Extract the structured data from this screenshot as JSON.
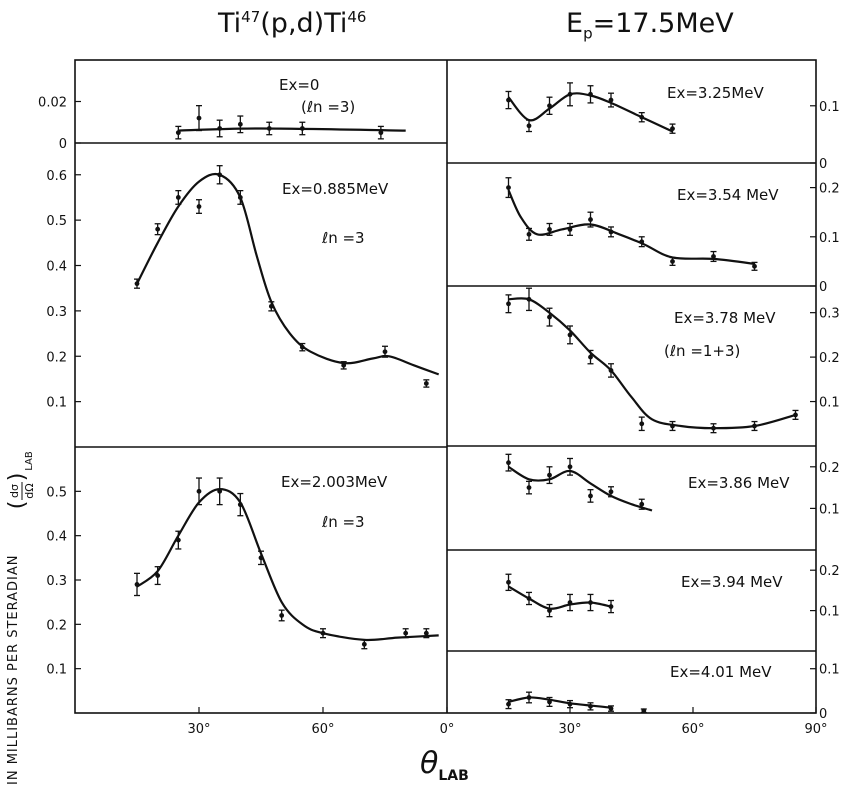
{
  "header": {
    "reaction": {
      "a": "Ti",
      "a_mass": "47",
      "mid": "(p,d)",
      "b": "Ti",
      "b_mass": "46"
    },
    "energy": {
      "sym": "E",
      "sub": "p",
      "rest": "=17.5MeV"
    }
  },
  "ylabel": {
    "main": "IN MILLIBARNS PER STERADIAN",
    "frac_num": "dσ",
    "frac_den": "dΩ",
    "sub": "LAB"
  },
  "xlabel": {
    "sym": "θ",
    "sub": "LAB"
  },
  "chart_data": [
    {
      "type": "scatter",
      "column": "left",
      "state": "Ex=0",
      "note": "(ℓn =3)",
      "ylim": [
        0,
        0.04
      ],
      "y_ticks": [
        "0.02",
        "0"
      ],
      "y_tick_values": [
        0.02,
        0
      ],
      "x": [
        25,
        30,
        35,
        40,
        47,
        55,
        74
      ],
      "y": [
        0.005,
        0.012,
        0.007,
        0.009,
        0.007,
        0.007,
        0.005
      ],
      "err": [
        0.003,
        0.006,
        0.004,
        0.004,
        0.003,
        0.003,
        0.003
      ],
      "curve": [
        [
          25,
          0.006
        ],
        [
          45,
          0.007
        ],
        [
          80,
          0.006
        ]
      ]
    },
    {
      "type": "scatter",
      "column": "left",
      "state": "Ex=0.885MeV",
      "note": "ℓn =3",
      "ylim": [
        0,
        0.67
      ],
      "y_ticks": [
        "0.6",
        "0.5",
        "0.4",
        "0.3",
        "0.2",
        "0.1"
      ],
      "y_tick_values": [
        0.6,
        0.5,
        0.4,
        0.3,
        0.2,
        0.1
      ],
      "x": [
        15,
        20,
        25,
        30,
        35,
        40,
        47.5,
        55,
        65,
        75,
        85
      ],
      "y": [
        0.36,
        0.48,
        0.55,
        0.53,
        0.6,
        0.55,
        0.31,
        0.22,
        0.18,
        0.21,
        0.14
      ],
      "err": [
        0.01,
        0.012,
        0.015,
        0.015,
        0.02,
        0.015,
        0.01,
        0.008,
        0.008,
        0.012,
        0.008
      ],
      "curve": [
        [
          15,
          0.36
        ],
        [
          20,
          0.45
        ],
        [
          25,
          0.53
        ],
        [
          30,
          0.585
        ],
        [
          35,
          0.6
        ],
        [
          40,
          0.55
        ],
        [
          44,
          0.42
        ],
        [
          47.5,
          0.32
        ],
        [
          52,
          0.25
        ],
        [
          57,
          0.21
        ],
        [
          65,
          0.185
        ],
        [
          72,
          0.195
        ],
        [
          76,
          0.2
        ],
        [
          82,
          0.18
        ],
        [
          88,
          0.16
        ]
      ]
    },
    {
      "type": "scatter",
      "column": "left",
      "state": "Ex=2.003MeV",
      "note": "ℓn =3",
      "ylim": [
        0,
        0.6
      ],
      "y_ticks": [
        "0.5",
        "0.4",
        "0.3",
        "0.2",
        "0.1"
      ],
      "y_tick_values": [
        0.5,
        0.4,
        0.3,
        0.2,
        0.1
      ],
      "x": [
        15,
        20,
        25,
        30,
        35,
        40,
        45,
        50,
        60,
        70,
        80,
        85
      ],
      "y": [
        0.29,
        0.31,
        0.39,
        0.5,
        0.5,
        0.47,
        0.35,
        0.22,
        0.18,
        0.155,
        0.18,
        0.18
      ],
      "err": [
        0.025,
        0.02,
        0.02,
        0.03,
        0.03,
        0.025,
        0.015,
        0.012,
        0.01,
        0.01,
        0.01,
        0.01
      ],
      "curve": [
        [
          15,
          0.285
        ],
        [
          20,
          0.32
        ],
        [
          25,
          0.4
        ],
        [
          30,
          0.475
        ],
        [
          35,
          0.505
        ],
        [
          40,
          0.475
        ],
        [
          45,
          0.36
        ],
        [
          50,
          0.25
        ],
        [
          55,
          0.2
        ],
        [
          60,
          0.18
        ],
        [
          70,
          0.165
        ],
        [
          78,
          0.17
        ],
        [
          88,
          0.175
        ]
      ]
    },
    {
      "type": "scatter",
      "column": "right",
      "state": "Ex=3.25MeV",
      "note": "",
      "ylim": [
        0,
        0.18
      ],
      "y_ticks": [
        "0.1",
        "0"
      ],
      "y_tick_values": [
        0.1,
        0
      ],
      "x": [
        15,
        20,
        25,
        30,
        35,
        40,
        47.5,
        55
      ],
      "y": [
        0.11,
        0.065,
        0.1,
        0.12,
        0.12,
        0.11,
        0.08,
        0.06
      ],
      "err": [
        0.015,
        0.01,
        0.015,
        0.02,
        0.015,
        0.012,
        0.008,
        0.008
      ],
      "curve": [
        [
          15,
          0.115
        ],
        [
          20,
          0.075
        ],
        [
          25,
          0.095
        ],
        [
          30,
          0.12
        ],
        [
          35,
          0.118
        ],
        [
          40,
          0.105
        ],
        [
          47.5,
          0.08
        ],
        [
          55,
          0.055
        ]
      ]
    },
    {
      "type": "scatter",
      "column": "right",
      "state": "Ex=3.54 MeV",
      "note": "",
      "ylim": [
        0,
        0.25
      ],
      "y_ticks": [
        "0.2",
        "0.1",
        "0"
      ],
      "y_tick_values": [
        0.2,
        0.1,
        0
      ],
      "x": [
        15,
        20,
        25,
        30,
        35,
        40,
        47.5,
        55,
        65,
        75
      ],
      "y": [
        0.2,
        0.105,
        0.115,
        0.115,
        0.135,
        0.11,
        0.09,
        0.05,
        0.06,
        0.04
      ],
      "err": [
        0.02,
        0.012,
        0.012,
        0.012,
        0.015,
        0.01,
        0.01,
        0.008,
        0.01,
        0.008
      ],
      "curve": [
        [
          15,
          0.195
        ],
        [
          18,
          0.14
        ],
        [
          22,
          0.105
        ],
        [
          28,
          0.115
        ],
        [
          35,
          0.125
        ],
        [
          42,
          0.105
        ],
        [
          48,
          0.085
        ],
        [
          55,
          0.058
        ],
        [
          65,
          0.055
        ],
        [
          75,
          0.045
        ]
      ]
    },
    {
      "type": "scatter",
      "column": "right",
      "state": "Ex=3.78 MeV",
      "note": "(ℓn =1+3)",
      "ylim": [
        0,
        0.36
      ],
      "y_ticks": [
        "0.3",
        "0.2",
        "0.1"
      ],
      "y_tick_values": [
        0.3,
        0.2,
        0.1
      ],
      "x": [
        15,
        20,
        25,
        30,
        35,
        40,
        47.5,
        55,
        65,
        75,
        85
      ],
      "y": [
        0.32,
        0.33,
        0.29,
        0.25,
        0.2,
        0.17,
        0.05,
        0.045,
        0.04,
        0.045,
        0.07
      ],
      "err": [
        0.02,
        0.025,
        0.02,
        0.02,
        0.015,
        0.015,
        0.015,
        0.01,
        0.01,
        0.01,
        0.01
      ],
      "curve": [
        [
          15,
          0.33
        ],
        [
          20,
          0.33
        ],
        [
          25,
          0.3
        ],
        [
          30,
          0.26
        ],
        [
          35,
          0.21
        ],
        [
          40,
          0.17
        ],
        [
          45,
          0.11
        ],
        [
          50,
          0.06
        ],
        [
          57,
          0.045
        ],
        [
          65,
          0.04
        ],
        [
          75,
          0.045
        ],
        [
          85,
          0.07
        ]
      ]
    },
    {
      "type": "scatter",
      "column": "right",
      "state": "Ex=3.86 MeV",
      "note": "",
      "ylim": [
        0,
        0.25
      ],
      "y_ticks": [
        "0.2",
        "0.1"
      ],
      "y_tick_values": [
        0.2,
        0.1
      ],
      "x": [
        15,
        20,
        25,
        30,
        35,
        40,
        47.5
      ],
      "y": [
        0.21,
        0.15,
        0.18,
        0.2,
        0.13,
        0.14,
        0.11
      ],
      "err": [
        0.02,
        0.015,
        0.02,
        0.02,
        0.015,
        0.012,
        0.012
      ],
      "curve": [
        [
          15,
          0.2
        ],
        [
          20,
          0.17
        ],
        [
          25,
          0.17
        ],
        [
          30,
          0.19
        ],
        [
          35,
          0.16
        ],
        [
          40,
          0.13
        ],
        [
          45,
          0.11
        ],
        [
          50,
          0.095
        ]
      ]
    },
    {
      "type": "scatter",
      "column": "right",
      "state": "Ex=3.94 MeV",
      "note": "",
      "ylim": [
        0,
        0.25
      ],
      "y_ticks": [
        "0.2",
        "0.1"
      ],
      "y_tick_values": [
        0.2,
        0.1
      ],
      "x": [
        15,
        20,
        25,
        30,
        35,
        40
      ],
      "y": [
        0.17,
        0.13,
        0.1,
        0.12,
        0.12,
        0.11
      ],
      "err": [
        0.02,
        0.015,
        0.015,
        0.02,
        0.02,
        0.015
      ],
      "curve": [
        [
          15,
          0.16
        ],
        [
          20,
          0.13
        ],
        [
          25,
          0.105
        ],
        [
          30,
          0.115
        ],
        [
          35,
          0.12
        ],
        [
          40,
          0.11
        ]
      ]
    },
    {
      "type": "scatter",
      "column": "right",
      "state": "Ex=4.01  MeV",
      "note": "",
      "ylim": [
        0,
        0.14
      ],
      "y_ticks": [
        "0.1",
        "0"
      ],
      "y_tick_values": [
        0.1,
        0
      ],
      "x": [
        15,
        20,
        25,
        30,
        35,
        40,
        48
      ],
      "y": [
        0.02,
        0.035,
        0.025,
        0.02,
        0.015,
        0.01,
        0.005
      ],
      "err": [
        0.01,
        0.012,
        0.01,
        0.008,
        0.008,
        0.006,
        0.004
      ],
      "curve": [
        [
          15,
          0.025
        ],
        [
          20,
          0.035
        ],
        [
          25,
          0.03
        ],
        [
          30,
          0.022
        ],
        [
          40,
          0.012
        ]
      ]
    }
  ],
  "x_axis": {
    "left_ticks": [
      "30°",
      "60°"
    ],
    "left_tick_values": [
      30,
      60
    ],
    "right_ticks": [
      "0°",
      "30°",
      "60°",
      "90°"
    ],
    "right_tick_values": [
      0,
      30,
      60,
      90
    ],
    "xlim": [
      0,
      90
    ]
  }
}
